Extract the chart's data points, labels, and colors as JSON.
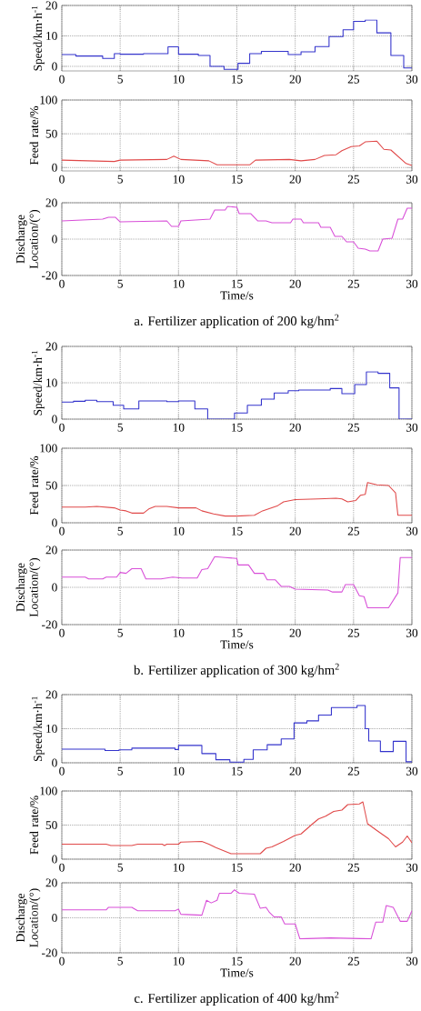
{
  "chart_data": [
    {
      "type": "step",
      "ylabel": "Speed/km·h$^{-1}$",
      "xlim": [
        0,
        30
      ],
      "xticks": [
        0,
        5,
        10,
        15,
        20,
        25,
        30
      ],
      "ylim": [
        -1.5,
        20
      ],
      "yticks": [
        0,
        10,
        20
      ],
      "grid": true,
      "color": "#3333cc",
      "x": [
        0,
        1.2,
        3.5,
        4.5,
        5,
        7,
        9.1,
        10,
        11.7,
        12.7,
        13.9,
        15.1,
        16.1,
        17.1,
        19.4,
        20.5,
        21.7,
        22.9,
        24.1,
        25,
        26,
        27,
        28.2,
        29.3,
        30
      ],
      "values": [
        3.9,
        3.4,
        2.6,
        4.2,
        4.0,
        4.2,
        6.4,
        4.0,
        3.6,
        0,
        -1,
        1,
        4.2,
        4.9,
        3.9,
        4.8,
        6.5,
        9.8,
        12,
        14.8,
        15.2,
        11,
        3.6,
        -0.5,
        -0.5
      ]
    },
    {
      "type": "line",
      "ylabel": "Feed rate/%",
      "xlim": [
        0,
        30
      ],
      "xticks": [
        0,
        5,
        10,
        15,
        20,
        25,
        30
      ],
      "ylim": [
        -5,
        100
      ],
      "yticks": [
        0,
        50,
        100
      ],
      "grid": true,
      "color": "#e04848",
      "x": [
        0,
        4.5,
        5,
        9,
        9.6,
        10.2,
        12.6,
        13.3,
        16.1,
        16.6,
        19.5,
        20.5,
        21.7,
        22.5,
        23.5,
        24,
        24.8,
        25.5,
        26,
        27,
        27.6,
        28.2,
        29.5,
        30
      ],
      "values": [
        11,
        9,
        11,
        12,
        17,
        12,
        10,
        4,
        4,
        11,
        12,
        10,
        12,
        18,
        19,
        25,
        31,
        32,
        38,
        39,
        27,
        26,
        6,
        3
      ]
    },
    {
      "type": "line",
      "ylabel": "Discharge Location/(°)",
      "xlabel": "Time/s",
      "annotations": [
        "a. Fertilizer application of 200 kg/hm$^{2}$"
      ],
      "xlim": [
        0,
        30
      ],
      "xticks": [
        0,
        5,
        10,
        15,
        20,
        25,
        30
      ],
      "ylim": [
        -20,
        20
      ],
      "yticks": [
        -20,
        0,
        20
      ],
      "grid": true,
      "color": "#d84fd8",
      "x": [
        0,
        3.5,
        4,
        4.6,
        5,
        9,
        9.4,
        10,
        10.2,
        12.7,
        13.1,
        14,
        14.2,
        15,
        15.2,
        16.2,
        16.8,
        17.5,
        18,
        19.6,
        19.8,
        20.5,
        20.7,
        22,
        22.2,
        23,
        23.4,
        24,
        24.4,
        25,
        25.4,
        26,
        26.4,
        27.1,
        27.5,
        28.3,
        28.8,
        29.2,
        29.6,
        30
      ],
      "values": [
        10,
        11,
        12,
        12,
        9.5,
        10,
        7,
        7,
        10,
        11,
        16,
        16,
        18,
        17.5,
        14,
        14,
        10,
        10,
        9,
        9,
        11,
        11,
        9,
        9,
        6.5,
        6.5,
        1.5,
        1.5,
        -1.5,
        -1.5,
        -5,
        -5.5,
        -6.5,
        -6.5,
        0,
        0.5,
        11,
        11,
        17,
        17
      ]
    },
    {
      "type": "step",
      "ylabel": "Speed/km·h$^{-1}$",
      "xlim": [
        0,
        30
      ],
      "xticks": [
        0,
        5,
        10,
        15,
        20,
        25,
        30
      ],
      "ylim": [
        0,
        20
      ],
      "yticks": [
        0,
        10,
        20
      ],
      "grid": true,
      "color": "#3333cc",
      "x": [
        0,
        1,
        2,
        3,
        4.4,
        5.3,
        6.6,
        9,
        10,
        11.4,
        12.5,
        14.8,
        15.9,
        17.1,
        18.2,
        19.4,
        20.3,
        23,
        24,
        25.1,
        26.1,
        27.1,
        28.1,
        28.9,
        30
      ],
      "values": [
        4.7,
        4.9,
        5.2,
        4.8,
        3.8,
        2.8,
        5.0,
        4.8,
        5.0,
        2.8,
        0,
        1.7,
        3.8,
        5.5,
        7.2,
        7.8,
        8.0,
        8.4,
        7.0,
        9.5,
        13,
        12.6,
        8.6,
        0,
        0
      ]
    },
    {
      "type": "line",
      "ylabel": "Feed rate/%",
      "xlim": [
        0,
        30
      ],
      "xticks": [
        0,
        5,
        10,
        15,
        20,
        25,
        30
      ],
      "ylim": [
        0,
        100
      ],
      "yticks": [
        0,
        50,
        100
      ],
      "grid": true,
      "color": "#e04848",
      "x": [
        0,
        2,
        3,
        4.5,
        5,
        5.5,
        6,
        7,
        7.5,
        8,
        9,
        10,
        11.5,
        12,
        13,
        14,
        15,
        16.5,
        17.2,
        18.5,
        19,
        20,
        22,
        23.5,
        24,
        24.5,
        25.2,
        25.6,
        26,
        26.2,
        27,
        28,
        28.6,
        28.8,
        30
      ],
      "values": [
        21,
        21,
        22,
        20,
        17,
        16,
        13,
        13,
        19,
        22,
        22,
        20,
        20,
        16,
        12,
        9,
        9,
        10,
        16,
        23,
        28,
        31,
        32,
        33,
        32,
        28,
        30,
        37,
        38,
        54,
        51,
        50,
        40,
        10,
        10
      ]
    },
    {
      "type": "line",
      "ylabel": "Discharge Location/(°)",
      "xlabel": "Time/s",
      "annotations": [
        "b. Fertilizer application of 300 kg/hm$^{2}$"
      ],
      "xlim": [
        0,
        30
      ],
      "xticks": [
        0,
        5,
        10,
        15,
        20,
        25,
        30
      ],
      "ylim": [
        -20,
        20
      ],
      "yticks": [
        -20,
        0,
        20
      ],
      "grid": true,
      "color": "#d84fd8",
      "x": [
        0,
        2,
        2.3,
        3.5,
        3.8,
        4.7,
        5,
        5.5,
        6,
        6.8,
        7.2,
        8.5,
        9.5,
        10.3,
        11.6,
        12,
        12.5,
        13.1,
        14,
        15,
        15.1,
        16,
        16.5,
        17.3,
        17.6,
        18.3,
        18.8,
        19.5,
        20,
        22.8,
        23.2,
        24,
        24.3,
        25,
        25.5,
        25.9,
        26.2,
        28,
        28.8,
        29,
        30
      ],
      "values": [
        5.5,
        5.5,
        4.5,
        4.5,
        5.5,
        5.5,
        8,
        7.5,
        10,
        10,
        4.5,
        4.5,
        5.5,
        5,
        5,
        9.5,
        10,
        16.5,
        16,
        15.5,
        12,
        12,
        7.5,
        7.5,
        4,
        4,
        0.5,
        0.5,
        -1,
        -1.5,
        -2.5,
        -2.5,
        1.5,
        1.5,
        -4.5,
        -5,
        -11,
        -11,
        -3,
        16,
        16
      ]
    },
    {
      "type": "step",
      "ylabel": "Speed/km·h$^{-1}$",
      "xlim": [
        0,
        30
      ],
      "xticks": [
        0,
        5,
        10,
        15,
        20,
        25,
        30
      ],
      "ylim": [
        0,
        20
      ],
      "yticks": [
        0,
        10,
        20
      ],
      "grid": true,
      "color": "#3333cc",
      "x": [
        0,
        3.7,
        4.9,
        6,
        9.7,
        10,
        12,
        13.2,
        14.4,
        15.6,
        16.4,
        17.6,
        18.8,
        19.9,
        21,
        22,
        23.1,
        25.3,
        26,
        26.3,
        27.3,
        28.4,
        29.5,
        30
      ],
      "values": [
        4.0,
        3.6,
        3.8,
        4.3,
        3.9,
        5.1,
        2.7,
        0.9,
        0.2,
        1.0,
        3.8,
        5.3,
        7.0,
        11.7,
        12.3,
        14,
        16.2,
        16.8,
        10,
        6.4,
        3.3,
        6.3,
        0.3,
        0.3
      ]
    },
    {
      "type": "line",
      "ylabel": "Feed rate/%",
      "xlim": [
        0,
        30
      ],
      "xticks": [
        0,
        5,
        10,
        15,
        20,
        25,
        30
      ],
      "ylim": [
        0,
        100
      ],
      "yticks": [
        0,
        50,
        100
      ],
      "grid": true,
      "color": "#e04848",
      "x": [
        0,
        3.8,
        4.2,
        6,
        6.5,
        8.6,
        8.8,
        9,
        10,
        10.2,
        12,
        12.6,
        13.2,
        14.5,
        17,
        17.5,
        18,
        19,
        20,
        20.5,
        21.5,
        22,
        22.6,
        23.3,
        24,
        24.5,
        25.5,
        25.8,
        26.2,
        27,
        28,
        28.6,
        29.2,
        29.6,
        30
      ],
      "values": [
        22,
        22,
        20,
        20,
        22,
        22,
        20,
        22,
        22,
        25,
        26,
        22,
        17,
        8,
        8,
        16,
        18,
        26,
        35,
        37,
        52,
        59,
        63,
        70,
        72,
        80,
        81,
        84,
        52,
        42,
        30,
        18,
        25,
        34,
        24
      ]
    },
    {
      "type": "line",
      "ylabel": "Discharge Location/(°)",
      "xlabel": "Time/s",
      "annotations": [
        "c. Fertilizer application of 400 kg/hm$^{2}$"
      ],
      "xlim": [
        0,
        30
      ],
      "xticks": [
        0,
        5,
        10,
        15,
        20,
        25,
        30
      ],
      "ylim": [
        -20,
        20
      ],
      "yticks": [
        -20,
        0,
        20
      ],
      "grid": true,
      "color": "#d84fd8",
      "x": [
        0,
        3.8,
        4,
        6,
        6.5,
        9.7,
        10,
        10.2,
        12,
        12.4,
        12.8,
        13.3,
        13.5,
        14.5,
        14.8,
        15.2,
        16.5,
        17,
        17.5,
        17.8,
        18.2,
        18.8,
        19.1,
        20,
        20.4,
        23,
        26.5,
        26.9,
        27.5,
        27.8,
        28.4,
        29,
        29.6,
        30
      ],
      "values": [
        4.5,
        4.5,
        6,
        6,
        4,
        4,
        5,
        2,
        1.5,
        10,
        8.5,
        10,
        14,
        14,
        16,
        14,
        13.5,
        5.5,
        6,
        3,
        0.5,
        0.5,
        -3.5,
        -3.5,
        -12,
        -11.5,
        -12,
        -2.5,
        -2.5,
        7,
        6,
        -2,
        -2,
        4
      ]
    }
  ]
}
